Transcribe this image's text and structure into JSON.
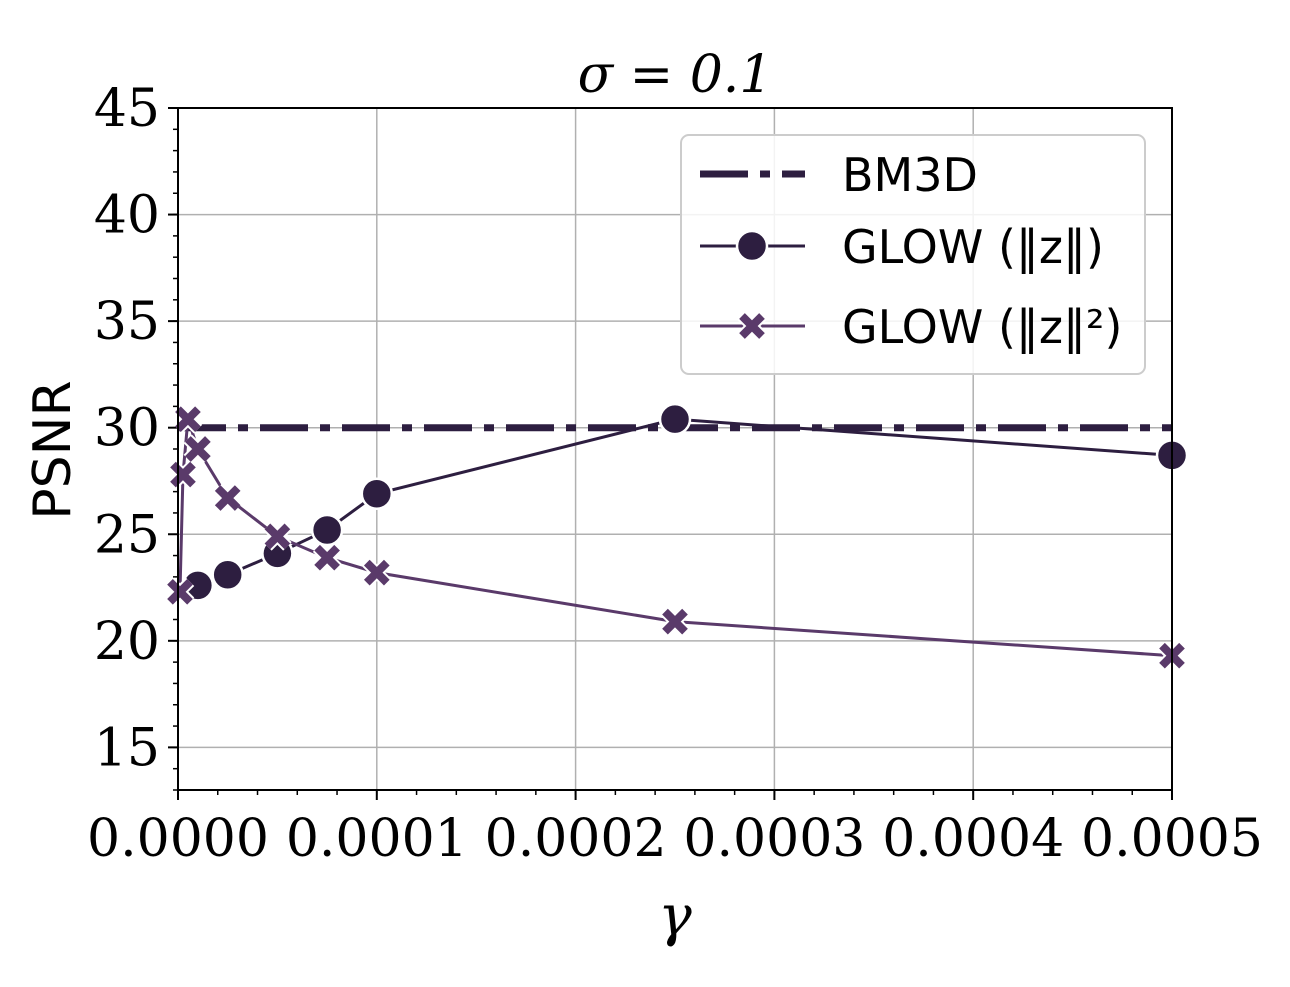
{
  "chart_data": {
    "type": "line",
    "title": "σ = 0.1",
    "xlabel": "γ",
    "ylabel": "PSNR",
    "xlim": [
      0,
      0.0005
    ],
    "ylim": [
      13,
      45
    ],
    "xticks": [
      0,
      0.0001,
      0.0002,
      0.0003,
      0.0004,
      0.0005
    ],
    "xtick_labels": [
      "0.0000",
      "0.0001",
      "0.0002",
      "0.0003",
      "0.0004",
      "0.0005"
    ],
    "yticks": [
      15,
      20,
      25,
      30,
      35,
      40,
      45
    ],
    "ytick_labels": [
      "15",
      "20",
      "25",
      "30",
      "35",
      "40",
      "45"
    ],
    "grid": true,
    "legend_position": "top-right",
    "colors": {
      "bm3d": "#2d1e40",
      "glow_z": "#2d1e40",
      "glow_z2": "#5a3a6a",
      "grid": "#b0b0b0"
    },
    "series": [
      {
        "name": "BM3D",
        "legend": "BM3D",
        "style": "dashdot",
        "marker": "none",
        "x": [
          0,
          0.0005
        ],
        "y": [
          30,
          30
        ]
      },
      {
        "name": "GLOW (||z||)",
        "legend": "GLOW (‖z‖)",
        "style": "solid",
        "marker": "circle",
        "x": [
          0,
          1e-05,
          2.5e-05,
          5e-05,
          7.5e-05,
          0.0001,
          0.00025,
          0.0005
        ],
        "y": [
          22.0,
          22.6,
          23.1,
          24.1,
          25.2,
          26.9,
          30.4,
          28.7
        ]
      },
      {
        "name": "GLOW (||z||^2)",
        "legend": "GLOW (‖z‖²)",
        "style": "solid",
        "marker": "x",
        "x": [
          0,
          1e-06,
          2.5e-06,
          5e-06,
          1e-05,
          2.5e-05,
          5e-05,
          7.5e-05,
          0.0001,
          0.00025,
          0.0005
        ],
        "y": [
          22.0,
          22.3,
          27.8,
          30.4,
          29.0,
          26.7,
          24.9,
          23.9,
          23.2,
          20.9,
          19.3
        ]
      }
    ]
  }
}
